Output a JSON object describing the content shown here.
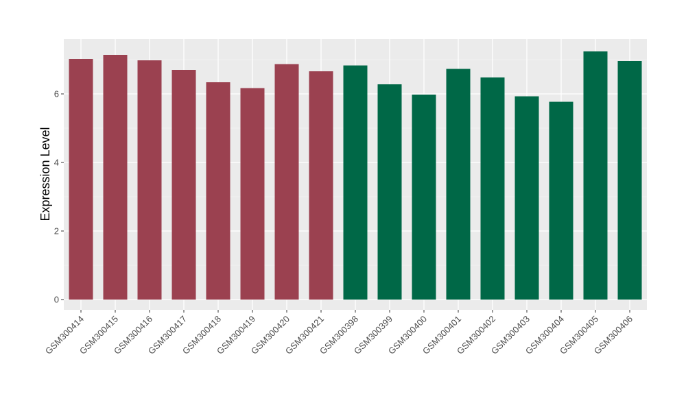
{
  "chart_data": {
    "type": "bar",
    "ylabel": "Expression Level",
    "ylim": [
      -0.3,
      7.6
    ],
    "yticks": [
      0,
      2,
      4,
      6
    ],
    "grid": true,
    "panel_background": "#ebebeb",
    "categories": [
      "GSM300414",
      "GSM300415",
      "GSM300416",
      "GSM300417",
      "GSM300418",
      "GSM300419",
      "GSM300420",
      "GSM300421",
      "GSM300398",
      "GSM300399",
      "GSM300400",
      "GSM300401",
      "GSM300402",
      "GSM300403",
      "GSM300404",
      "GSM300405",
      "GSM300406"
    ],
    "values": [
      7.02,
      7.14,
      6.98,
      6.7,
      6.34,
      6.17,
      6.87,
      6.66,
      6.83,
      6.28,
      5.98,
      6.73,
      6.48,
      5.93,
      5.77,
      7.24,
      6.96
    ],
    "bar_colors": [
      "#9b4150",
      "#9b4150",
      "#9b4150",
      "#9b4150",
      "#9b4150",
      "#9b4150",
      "#9b4150",
      "#9b4150",
      "#006847",
      "#006847",
      "#006847",
      "#006847",
      "#006847",
      "#006847",
      "#006847",
      "#006847",
      "#006847"
    ]
  }
}
